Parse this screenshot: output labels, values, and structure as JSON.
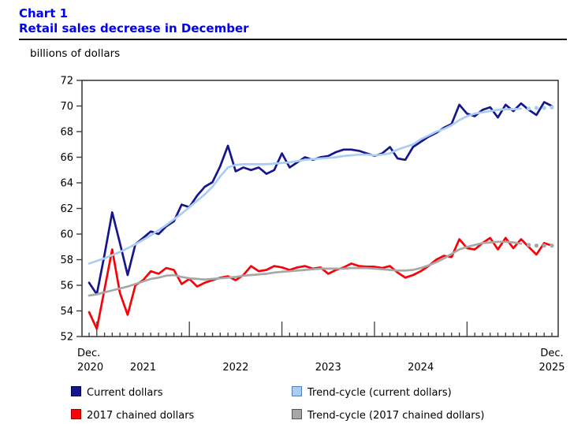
{
  "header": {
    "chart_label": "Chart 1",
    "title": "Retail sales decrease in December",
    "title_color": "#0000F5"
  },
  "axis_note": "billions of dollars",
  "chart_data": {
    "type": "line",
    "title": "Retail sales decrease in December",
    "ylabel": "billions of dollars",
    "y_axis": {
      "min": 52,
      "max": 72,
      "ticks": [
        52,
        54,
        56,
        58,
        60,
        62,
        64,
        66,
        68,
        70,
        72
      ]
    },
    "x_axis": {
      "n_points": 61,
      "first_point_label": [
        "Dec.",
        "2020"
      ],
      "last_point_label": [
        "Dec.",
        "2025"
      ],
      "mid_year_labels": [
        "2021",
        "2022",
        "2023",
        "2024"
      ],
      "year_boundary_tick_indices": [
        1,
        13,
        25,
        37,
        49
      ],
      "grid": false
    },
    "legend_position": "bottom",
    "series": [
      {
        "name": "Current dollars",
        "color": "#16168c",
        "legend_border": "#00004a",
        "style": "solid",
        "values": [
          56.2,
          55.3,
          58.4,
          61.7,
          59.3,
          56.8,
          59.2,
          59.7,
          60.2,
          60.0,
          60.6,
          61.0,
          62.3,
          62.1,
          63.0,
          63.7,
          64.05,
          65.3,
          66.9,
          64.9,
          65.2,
          65.0,
          65.2,
          64.7,
          65.0,
          66.3,
          65.2,
          65.6,
          66.0,
          65.8,
          66.0,
          66.1,
          66.4,
          66.6,
          66.6,
          66.5,
          66.3,
          66.1,
          66.3,
          66.8,
          65.9,
          65.8,
          66.8,
          67.2,
          67.6,
          67.9,
          68.3,
          68.6,
          70.1,
          69.4,
          69.2,
          69.7,
          69.9,
          69.1,
          70.1,
          69.6,
          70.2,
          69.7,
          69.3,
          70.3,
          70.0
        ]
      },
      {
        "name": "Trend-cycle (current dollars)",
        "color": "#a9cef2",
        "legend_border": "#5580b5",
        "style": "solid_with_dotted_tail",
        "dotted_tail_points": 4,
        "values": [
          57.7,
          57.9,
          58.1,
          58.35,
          58.6,
          58.9,
          59.2,
          59.55,
          59.9,
          60.3,
          60.7,
          61.15,
          61.6,
          62.1,
          62.6,
          63.1,
          63.7,
          64.5,
          65.2,
          65.4,
          65.45,
          65.45,
          65.45,
          65.45,
          65.5,
          65.55,
          65.6,
          65.7,
          65.8,
          65.85,
          65.9,
          65.95,
          66.0,
          66.1,
          66.15,
          66.2,
          66.2,
          66.15,
          66.2,
          66.3,
          66.6,
          66.8,
          67.0,
          67.4,
          67.7,
          68.0,
          68.2,
          68.5,
          68.9,
          69.2,
          69.4,
          69.5,
          69.6,
          69.7,
          69.75,
          69.75,
          69.8,
          69.8,
          69.85,
          69.85,
          69.9
        ]
      },
      {
        "name": "2017 chained dollars",
        "color": "#fb0006",
        "legend_border": "#990000",
        "style": "solid",
        "values": [
          53.9,
          52.6,
          55.7,
          58.8,
          55.4,
          53.7,
          56.0,
          56.4,
          57.1,
          56.9,
          57.35,
          57.2,
          56.1,
          56.5,
          55.9,
          56.2,
          56.4,
          56.6,
          56.7,
          56.4,
          56.8,
          57.5,
          57.1,
          57.2,
          57.5,
          57.4,
          57.2,
          57.4,
          57.5,
          57.3,
          57.4,
          56.9,
          57.2,
          57.4,
          57.7,
          57.5,
          57.45,
          57.45,
          57.35,
          57.5,
          57.0,
          56.6,
          56.8,
          57.1,
          57.5,
          58.0,
          58.3,
          58.2,
          59.6,
          58.9,
          58.8,
          59.3,
          59.7,
          58.8,
          59.7,
          58.9,
          59.6,
          59.0,
          58.4,
          59.3,
          59.1
        ]
      },
      {
        "name": "Trend-cycle (2017 chained dollars)",
        "color": "#a7a7a7",
        "legend_border": "#555555",
        "style": "solid_with_dotted_tail",
        "dotted_tail_points": 4,
        "values": [
          55.2,
          55.3,
          55.45,
          55.6,
          55.75,
          55.9,
          56.1,
          56.3,
          56.5,
          56.6,
          56.75,
          56.8,
          56.65,
          56.55,
          56.5,
          56.45,
          56.5,
          56.55,
          56.6,
          56.65,
          56.75,
          56.8,
          56.85,
          56.9,
          57.0,
          57.05,
          57.1,
          57.15,
          57.2,
          57.25,
          57.3,
          57.3,
          57.3,
          57.3,
          57.35,
          57.35,
          57.35,
          57.3,
          57.25,
          57.2,
          57.15,
          57.15,
          57.2,
          57.35,
          57.55,
          57.8,
          58.1,
          58.45,
          58.8,
          59.0,
          59.15,
          59.3,
          59.35,
          59.4,
          59.4,
          59.35,
          59.25,
          59.15,
          59.1,
          59.1,
          59.1
        ]
      }
    ]
  },
  "legend": {
    "rows": 2,
    "columns": 2
  }
}
